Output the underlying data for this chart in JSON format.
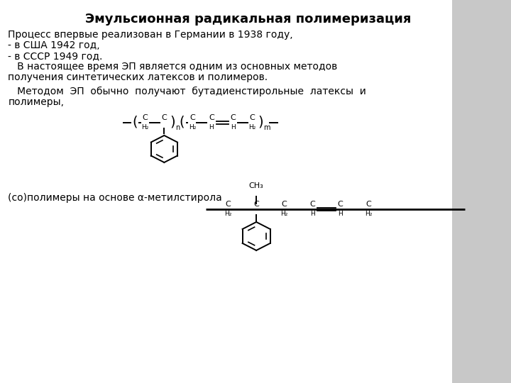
{
  "title": "Эмульсионная радикальная полимеризация",
  "line1": "Процесс впервые реализован в Германии в 1938 году,",
  "line2": "- в США 1942 год,",
  "line3": "- в СССР 1949 год.",
  "line4": "   В настоящее время ЭП является одним из основных методов",
  "line5": "получения синтетических латексов и полимеров.",
  "line6": "   Методом  ЭП  обычно  получают  бутадиенстирольные  латексы  и",
  "line7": "полимеры,",
  "line8": "(со)полимеры на основе α-метилстирола",
  "bg_color": "#c8c8c8",
  "main_bg": "#f0f0f0",
  "text_color": "#000000",
  "title_fontsize": 13,
  "body_fontsize": 10
}
